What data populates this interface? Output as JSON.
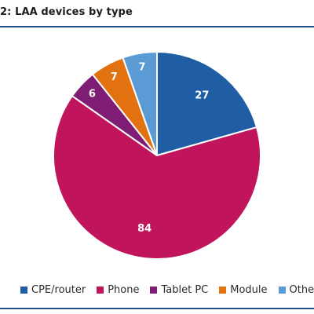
{
  "chart_data": {
    "type": "pie",
    "title": "2: LAA devices by type",
    "categories": [
      "CPE/router",
      "Phone",
      "Tablet PC",
      "Module",
      "Other"
    ],
    "values": [
      27,
      84,
      6,
      7,
      7
    ],
    "colors": [
      "#1f5ea5",
      "#c0145d",
      "#7f1d74",
      "#e2720f",
      "#5b9bd5"
    ],
    "legend_position": "bottom"
  }
}
